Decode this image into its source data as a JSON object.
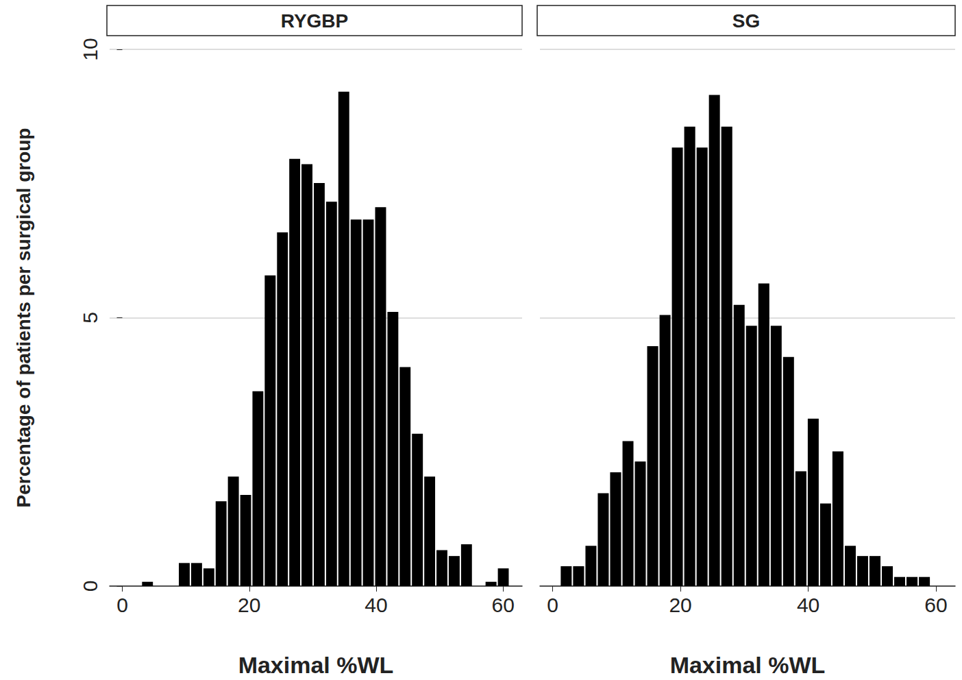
{
  "chart_data": [
    {
      "type": "histogram",
      "title": "RYGBP",
      "xlabel": "Maximal %WL",
      "ylabel": "Percentage of patients per surgical group",
      "bins": [
        3.0,
        4.93,
        6.87,
        8.8,
        10.73,
        12.67,
        14.6,
        16.53,
        18.47,
        20.4,
        22.33,
        24.27,
        26.2,
        28.13,
        30.07,
        32.0,
        33.93,
        35.87,
        37.8,
        39.73,
        41.67,
        43.6,
        45.53,
        47.47,
        49.4,
        51.33,
        53.27,
        55.2,
        57.13,
        59.07,
        61.0
      ],
      "values": [
        0.08,
        0,
        0,
        0.43,
        0.43,
        0.33,
        1.58,
        2.04,
        1.7,
        3.63,
        5.79,
        6.59,
        7.96,
        7.86,
        7.51,
        7.16,
        9.21,
        6.83,
        6.83,
        7.06,
        5.11,
        4.08,
        2.84,
        2.04,
        0.67,
        0.56,
        0.78,
        0,
        0.08,
        0.33
      ],
      "color": "#000000",
      "xlim": [
        -2,
        63
      ],
      "xticks": [
        0,
        20,
        40,
        60
      ],
      "ylim": [
        0,
        10
      ],
      "yticks": [
        0,
        5,
        10
      ],
      "grid": true
    },
    {
      "type": "histogram",
      "title": "SG",
      "xlabel": "Maximal %WL",
      "bins": [
        1.15,
        3.08,
        5.02,
        6.95,
        8.88,
        10.82,
        12.75,
        14.68,
        16.62,
        18.55,
        20.48,
        22.42,
        24.35,
        26.28,
        28.22,
        30.15,
        32.08,
        34.02,
        35.95,
        37.88,
        39.82,
        41.75,
        43.68,
        45.62,
        47.55,
        49.48,
        51.42,
        53.35,
        55.28,
        57.22,
        59.15
      ],
      "values": [
        0.37,
        0.37,
        0.75,
        1.73,
        2.12,
        2.7,
        2.32,
        4.47,
        5.05,
        8.17,
        8.56,
        8.17,
        9.15,
        8.56,
        5.24,
        4.85,
        5.64,
        4.85,
        4.27,
        2.14,
        3.12,
        1.54,
        2.51,
        0.75,
        0.56,
        0.56,
        0.37,
        0.17,
        0.17,
        0.17
      ],
      "color": "#000000",
      "xlim": [
        -2,
        63
      ],
      "xticks": [
        0,
        20,
        40,
        60
      ],
      "ylim": [
        0,
        10
      ],
      "yticks": [
        0,
        5,
        10
      ],
      "grid": true,
      "tick_labels": "x"
    }
  ]
}
